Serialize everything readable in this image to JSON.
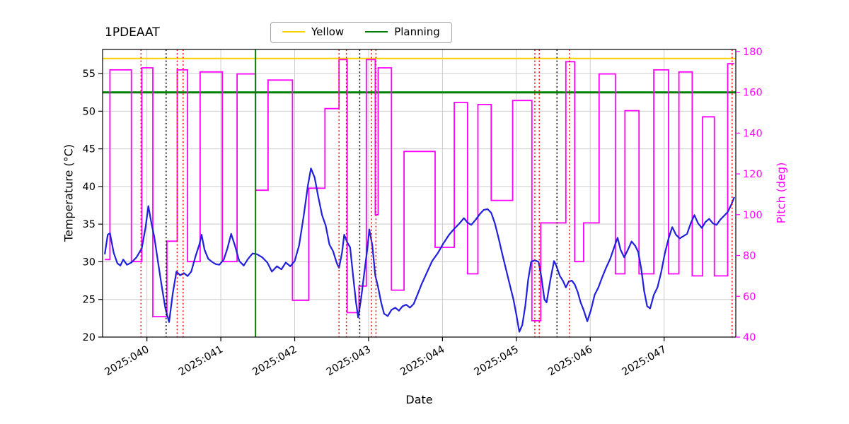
{
  "chart_data": {
    "type": "line",
    "title": "1PDEAAT",
    "xlabel": "Date",
    "ylabel_left": "Temperature (°C)",
    "ylabel_right": "Pitch (deg)",
    "grid": true,
    "xlim_days": [
      39.4,
      47.97
    ],
    "ylim_left": [
      20,
      58.2
    ],
    "ylim_right": [
      40,
      181
    ],
    "x_ticks": [
      {
        "day": 40,
        "label": "2025:040"
      },
      {
        "day": 41,
        "label": "2025:041"
      },
      {
        "day": 42,
        "label": "2025:042"
      },
      {
        "day": 43,
        "label": "2025:043"
      },
      {
        "day": 44,
        "label": "2025:044"
      },
      {
        "day": 45,
        "label": "2025:045"
      },
      {
        "day": 46,
        "label": "2025:046"
      },
      {
        "day": 47,
        "label": "2025:047"
      }
    ],
    "y_ticks_left": [
      20,
      25,
      30,
      35,
      40,
      45,
      50,
      55
    ],
    "y_ticks_right": [
      40,
      60,
      80,
      100,
      120,
      140,
      160,
      180
    ],
    "legend": {
      "position": "top-center",
      "entries": [
        {
          "label": "Yellow",
          "color": "#ffd000"
        },
        {
          "label": "Planning",
          "color": "#008000"
        }
      ]
    },
    "limit_lines": {
      "yellow_temp": 57.0,
      "planning_temp": 52.5
    },
    "vlines": {
      "green_solid": [
        41.47
      ],
      "black_dotted": [
        40.26,
        42.88,
        45.55
      ],
      "red_dotted": [
        39.92,
        40.41,
        40.49,
        42.6,
        42.7,
        43.04,
        43.1,
        45.25,
        45.31,
        45.72,
        47.92
      ]
    },
    "colors": {
      "grid": "#cccccc",
      "frame": "#000000",
      "tick_label_left": "#000000",
      "tick_label_right": "#ff00ff"
    },
    "series": {
      "temperature": {
        "name": "temperature",
        "axis": "left",
        "color": "#2020dd",
        "points": [
          [
            39.43,
            31.0
          ],
          [
            39.47,
            33.6
          ],
          [
            39.5,
            33.8
          ],
          [
            39.55,
            31.2
          ],
          [
            39.6,
            29.8
          ],
          [
            39.64,
            29.5
          ],
          [
            39.68,
            30.3
          ],
          [
            39.73,
            29.6
          ],
          [
            39.79,
            29.9
          ],
          [
            39.86,
            30.6
          ],
          [
            39.93,
            31.8
          ],
          [
            39.98,
            34.5
          ],
          [
            40.02,
            37.4
          ],
          [
            40.06,
            35.2
          ],
          [
            40.1,
            33.3
          ],
          [
            40.15,
            30.0
          ],
          [
            40.2,
            26.8
          ],
          [
            40.25,
            23.8
          ],
          [
            40.3,
            22.0
          ],
          [
            40.35,
            25.8
          ],
          [
            40.4,
            28.7
          ],
          [
            40.45,
            28.2
          ],
          [
            40.5,
            28.5
          ],
          [
            40.55,
            28.1
          ],
          [
            40.6,
            28.7
          ],
          [
            40.66,
            30.8
          ],
          [
            40.71,
            32.3
          ],
          [
            40.74,
            33.6
          ],
          [
            40.78,
            31.6
          ],
          [
            40.83,
            30.4
          ],
          [
            40.88,
            30.0
          ],
          [
            40.93,
            29.7
          ],
          [
            40.98,
            29.6
          ],
          [
            41.04,
            30.3
          ],
          [
            41.09,
            31.8
          ],
          [
            41.14,
            33.7
          ],
          [
            41.19,
            32.2
          ],
          [
            41.25,
            30.1
          ],
          [
            41.31,
            29.5
          ],
          [
            41.37,
            30.4
          ],
          [
            41.43,
            31.1
          ],
          [
            41.49,
            31.0
          ],
          [
            41.56,
            30.6
          ],
          [
            41.63,
            29.9
          ],
          [
            41.69,
            28.7
          ],
          [
            41.76,
            29.4
          ],
          [
            41.82,
            29.0
          ],
          [
            41.88,
            29.9
          ],
          [
            41.94,
            29.4
          ],
          [
            42.0,
            30.1
          ],
          [
            42.06,
            32.2
          ],
          [
            42.12,
            36.0
          ],
          [
            42.18,
            40.2
          ],
          [
            42.22,
            42.4
          ],
          [
            42.27,
            41.2
          ],
          [
            42.32,
            38.6
          ],
          [
            42.37,
            36.2
          ],
          [
            42.42,
            34.8
          ],
          [
            42.47,
            32.3
          ],
          [
            42.52,
            31.4
          ],
          [
            42.57,
            29.8
          ],
          [
            42.6,
            29.2
          ],
          [
            42.64,
            31.2
          ],
          [
            42.67,
            33.6
          ],
          [
            42.71,
            32.6
          ],
          [
            42.75,
            31.9
          ],
          [
            42.79,
            28.2
          ],
          [
            42.83,
            24.6
          ],
          [
            42.86,
            22.6
          ],
          [
            42.9,
            25.2
          ],
          [
            42.94,
            28.4
          ],
          [
            42.98,
            31.5
          ],
          [
            43.01,
            34.3
          ],
          [
            43.05,
            32.2
          ],
          [
            43.09,
            28.2
          ],
          [
            43.13,
            26.6
          ],
          [
            43.17,
            24.6
          ],
          [
            43.21,
            23.1
          ],
          [
            43.26,
            22.8
          ],
          [
            43.31,
            23.6
          ],
          [
            43.36,
            23.9
          ],
          [
            43.41,
            23.5
          ],
          [
            43.46,
            24.1
          ],
          [
            43.51,
            24.3
          ],
          [
            43.56,
            23.9
          ],
          [
            43.61,
            24.4
          ],
          [
            43.66,
            25.6
          ],
          [
            43.72,
            27.1
          ],
          [
            43.79,
            28.6
          ],
          [
            43.86,
            30.1
          ],
          [
            43.94,
            31.2
          ],
          [
            44.01,
            32.4
          ],
          [
            44.09,
            33.6
          ],
          [
            44.16,
            34.4
          ],
          [
            44.23,
            35.1
          ],
          [
            44.29,
            35.8
          ],
          [
            44.34,
            35.2
          ],
          [
            44.39,
            34.9
          ],
          [
            44.45,
            35.6
          ],
          [
            44.51,
            36.4
          ],
          [
            44.56,
            36.9
          ],
          [
            44.61,
            37.0
          ],
          [
            44.66,
            36.5
          ],
          [
            44.71,
            35.1
          ],
          [
            44.76,
            33.1
          ],
          [
            44.81,
            31.0
          ],
          [
            44.86,
            29.0
          ],
          [
            44.91,
            27.0
          ],
          [
            44.96,
            25.0
          ],
          [
            45.0,
            23.0
          ],
          [
            45.04,
            20.7
          ],
          [
            45.08,
            21.6
          ],
          [
            45.12,
            24.1
          ],
          [
            45.16,
            27.6
          ],
          [
            45.2,
            30.0
          ],
          [
            45.25,
            30.2
          ],
          [
            45.3,
            30.0
          ],
          [
            45.34,
            27.9
          ],
          [
            45.38,
            25.0
          ],
          [
            45.41,
            24.6
          ],
          [
            45.46,
            27.6
          ],
          [
            45.51,
            30.1
          ],
          [
            45.54,
            29.5
          ],
          [
            45.59,
            28.1
          ],
          [
            45.63,
            27.5
          ],
          [
            45.67,
            26.6
          ],
          [
            45.71,
            27.4
          ],
          [
            45.75,
            27.5
          ],
          [
            45.79,
            27.0
          ],
          [
            45.83,
            26.0
          ],
          [
            45.87,
            24.6
          ],
          [
            45.91,
            23.6
          ],
          [
            45.96,
            22.1
          ],
          [
            46.01,
            23.6
          ],
          [
            46.06,
            25.6
          ],
          [
            46.11,
            26.6
          ],
          [
            46.16,
            27.9
          ],
          [
            46.21,
            29.1
          ],
          [
            46.27,
            30.4
          ],
          [
            46.33,
            32.1
          ],
          [
            46.37,
            33.2
          ],
          [
            46.41,
            31.6
          ],
          [
            46.46,
            30.6
          ],
          [
            46.51,
            31.6
          ],
          [
            46.56,
            32.7
          ],
          [
            46.61,
            32.1
          ],
          [
            46.65,
            31.3
          ],
          [
            46.69,
            29.1
          ],
          [
            46.73,
            26.1
          ],
          [
            46.77,
            24.1
          ],
          [
            46.81,
            23.8
          ],
          [
            46.86,
            25.6
          ],
          [
            46.91,
            26.6
          ],
          [
            46.96,
            28.6
          ],
          [
            47.01,
            31.1
          ],
          [
            47.06,
            33.1
          ],
          [
            47.11,
            34.6
          ],
          [
            47.16,
            33.6
          ],
          [
            47.21,
            33.1
          ],
          [
            47.26,
            33.4
          ],
          [
            47.31,
            33.7
          ],
          [
            47.36,
            35.1
          ],
          [
            47.41,
            36.2
          ],
          [
            47.46,
            35.1
          ],
          [
            47.51,
            34.5
          ],
          [
            47.56,
            35.3
          ],
          [
            47.61,
            35.7
          ],
          [
            47.66,
            35.1
          ],
          [
            47.71,
            34.9
          ],
          [
            47.76,
            35.6
          ],
          [
            47.81,
            36.1
          ],
          [
            47.86,
            36.6
          ],
          [
            47.91,
            37.6
          ],
          [
            47.95,
            38.6
          ]
        ]
      },
      "pitch": {
        "name": "pitch",
        "axis": "right",
        "color": "#ff00ff",
        "style": "step",
        "plateaus": [
          [
            39.43,
            39.5,
            78
          ],
          [
            39.5,
            39.79,
            171
          ],
          [
            39.79,
            39.93,
            77
          ],
          [
            39.93,
            40.08,
            172
          ],
          [
            40.08,
            40.27,
            50
          ],
          [
            40.27,
            40.41,
            87
          ],
          [
            40.41,
            40.55,
            171
          ],
          [
            40.55,
            40.72,
            77
          ],
          [
            40.72,
            41.02,
            170
          ],
          [
            41.02,
            41.22,
            77
          ],
          [
            41.22,
            41.47,
            169
          ],
          [
            41.47,
            41.64,
            112
          ],
          [
            41.64,
            41.97,
            166
          ],
          [
            41.97,
            42.19,
            58
          ],
          [
            42.19,
            42.41,
            113
          ],
          [
            42.41,
            42.6,
            152
          ],
          [
            42.6,
            42.71,
            176
          ],
          [
            42.71,
            42.87,
            52
          ],
          [
            42.87,
            42.97,
            65
          ],
          [
            42.97,
            43.09,
            176
          ],
          [
            43.09,
            43.13,
            100
          ],
          [
            43.13,
            43.31,
            172
          ],
          [
            43.31,
            43.48,
            63
          ],
          [
            43.48,
            43.9,
            131
          ],
          [
            43.9,
            44.16,
            84
          ],
          [
            44.16,
            44.34,
            155
          ],
          [
            44.34,
            44.48,
            71
          ],
          [
            44.48,
            44.66,
            154
          ],
          [
            44.66,
            44.95,
            107
          ],
          [
            44.95,
            45.21,
            156
          ],
          [
            45.21,
            45.33,
            48
          ],
          [
            45.33,
            45.67,
            96
          ],
          [
            45.67,
            45.79,
            175
          ],
          [
            45.79,
            45.91,
            77
          ],
          [
            45.91,
            46.12,
            96
          ],
          [
            46.12,
            46.34,
            169
          ],
          [
            46.34,
            46.47,
            71
          ],
          [
            46.47,
            46.66,
            151
          ],
          [
            46.66,
            46.86,
            71
          ],
          [
            46.86,
            47.06,
            171
          ],
          [
            47.06,
            47.2,
            71
          ],
          [
            47.2,
            47.38,
            170
          ],
          [
            47.38,
            47.52,
            70
          ],
          [
            47.52,
            47.68,
            148
          ],
          [
            47.68,
            47.86,
            70
          ],
          [
            47.86,
            47.95,
            174
          ]
        ]
      }
    }
  }
}
